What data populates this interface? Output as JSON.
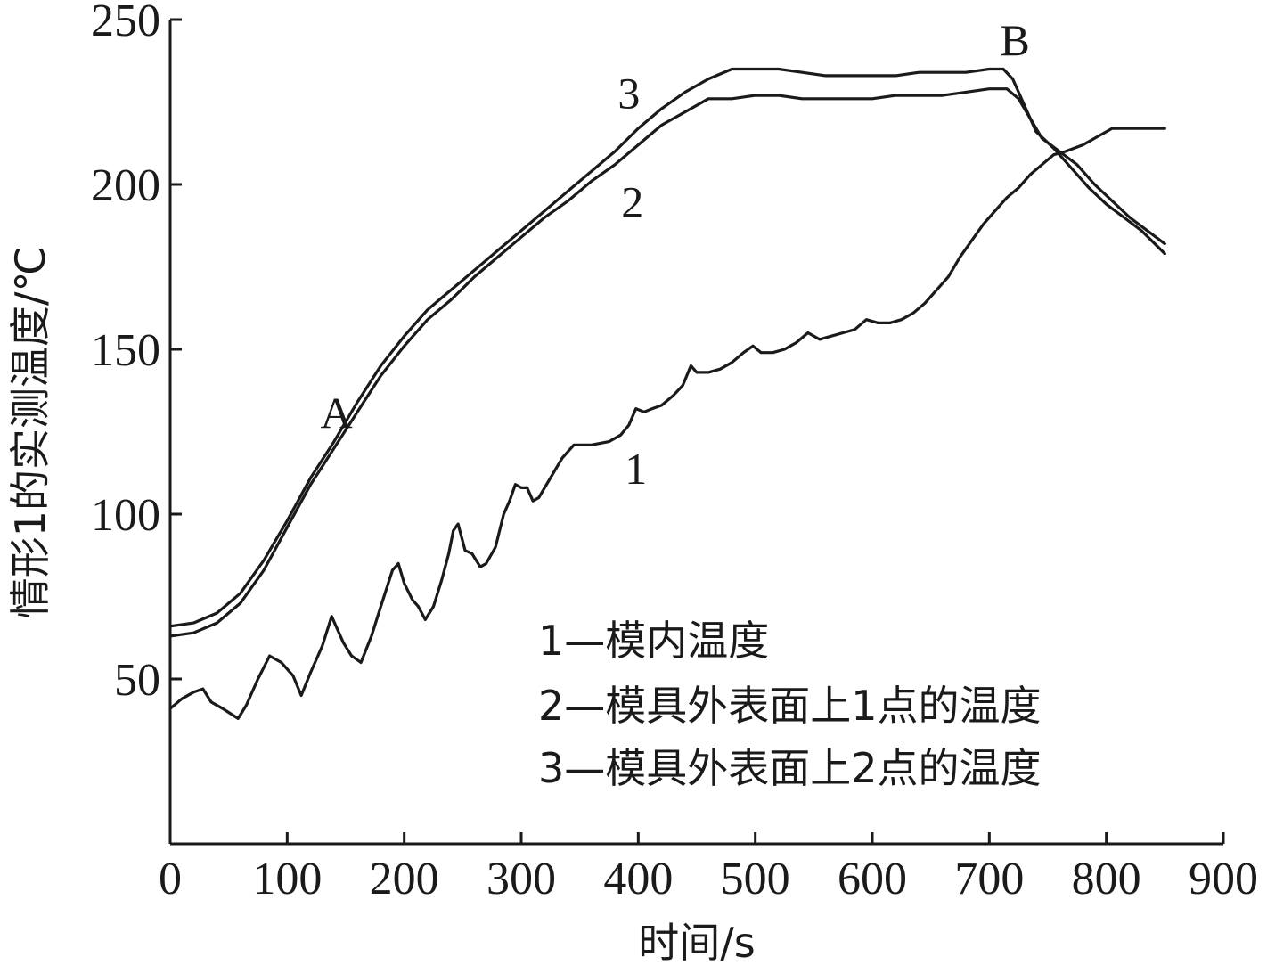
{
  "chart_data": {
    "type": "line",
    "xlabel": "时间/s",
    "ylabel": "情形1的实测温度/℃",
    "xlim": [
      0,
      900
    ],
    "ylim": [
      0,
      250
    ],
    "x_ticks": [
      "0",
      "100",
      "200",
      "300",
      "400",
      "500",
      "600",
      "700",
      "800",
      "900"
    ],
    "y_ticks": [
      "50",
      "100",
      "150",
      "200",
      "250"
    ],
    "grid": false,
    "legend_position": "bottom-right",
    "legend": [
      "1—模内温度",
      "2—模具外表面上1点的温度",
      "3—模具外表面上2点的温度"
    ],
    "series": [
      {
        "name": "1",
        "x": [
          0,
          10,
          20,
          28,
          35,
          45,
          58,
          65,
          75,
          85,
          95,
          105,
          112,
          120,
          130,
          138,
          148,
          155,
          163,
          172,
          180,
          190,
          195,
          200,
          207,
          212,
          218,
          225,
          232,
          238,
          242,
          246,
          252,
          258,
          265,
          270,
          278,
          285,
          290,
          295,
          300,
          305,
          310,
          315,
          325,
          335,
          345,
          360,
          375,
          385,
          392,
          398,
          405,
          412,
          420,
          430,
          438,
          445,
          450,
          460,
          470,
          480,
          490,
          498,
          505,
          515,
          525,
          535,
          545,
          555,
          565,
          575,
          585,
          595,
          605,
          615,
          625,
          635,
          645,
          655,
          665,
          675,
          685,
          695,
          705,
          715,
          725,
          735,
          745,
          755,
          765,
          780,
          795,
          805,
          815,
          830,
          850
        ],
        "y": [
          41,
          44,
          46,
          47,
          43,
          41,
          38,
          42,
          50,
          57,
          55,
          51,
          45,
          52,
          60,
          69,
          61,
          57,
          55,
          63,
          72,
          83,
          85,
          79,
          74,
          72,
          68,
          72,
          80,
          88,
          95,
          97,
          89,
          88,
          84,
          85,
          90,
          100,
          104,
          109,
          108,
          108,
          104,
          105,
          111,
          117,
          121,
          121,
          122,
          124,
          127,
          132,
          131,
          132,
          133,
          136,
          139,
          145,
          143,
          143,
          144,
          146,
          149,
          151,
          149,
          149,
          150,
          152,
          155,
          153,
          154,
          155,
          156,
          159,
          158,
          158,
          159,
          161,
          164,
          168,
          172,
          178,
          183,
          188,
          192,
          196,
          199,
          203,
          206,
          209,
          210,
          212,
          215,
          217,
          217,
          217,
          217
        ]
      },
      {
        "name": "2",
        "x": [
          0,
          20,
          40,
          60,
          80,
          100,
          120,
          140,
          160,
          180,
          200,
          220,
          240,
          260,
          280,
          300,
          320,
          340,
          360,
          380,
          400,
          420,
          440,
          460,
          480,
          500,
          520,
          540,
          560,
          580,
          600,
          620,
          640,
          660,
          680,
          700,
          715,
          725,
          735,
          745,
          760,
          775,
          790,
          805,
          820,
          835,
          850
        ],
        "y": [
          63,
          64,
          67,
          73,
          83,
          96,
          109,
          120,
          131,
          142,
          151,
          159,
          165,
          172,
          178,
          184,
          190,
          195,
          201,
          206,
          212,
          218,
          222,
          226,
          226,
          227,
          227,
          226,
          226,
          226,
          226,
          227,
          227,
          227,
          228,
          229,
          229,
          226,
          220,
          214,
          210,
          206,
          200,
          195,
          190,
          186,
          182
        ]
      },
      {
        "name": "3",
        "x": [
          0,
          20,
          40,
          60,
          80,
          100,
          120,
          140,
          160,
          180,
          200,
          220,
          240,
          260,
          280,
          300,
          320,
          340,
          360,
          380,
          400,
          420,
          440,
          460,
          480,
          500,
          520,
          540,
          560,
          580,
          600,
          620,
          640,
          660,
          680,
          700,
          712,
          720,
          730,
          740,
          755,
          770,
          785,
          800,
          815,
          830,
          850
        ],
        "y": [
          66,
          67,
          70,
          76,
          86,
          98,
          111,
          122,
          134,
          145,
          154,
          162,
          168,
          174,
          180,
          186,
          192,
          198,
          204,
          210,
          217,
          223,
          228,
          232,
          235,
          235,
          235,
          234,
          233,
          233,
          233,
          233,
          234,
          234,
          234,
          235,
          235,
          232,
          224,
          216,
          211,
          205,
          199,
          194,
          190,
          186,
          179
        ]
      }
    ],
    "annotations": [
      {
        "text": "A",
        "x": 142,
        "y": 131
      },
      {
        "text": "B",
        "x": 722,
        "y": 244
      },
      {
        "text": "1",
        "x": 398,
        "y": 114
      },
      {
        "text": "2",
        "x": 395,
        "y": 195
      },
      {
        "text": "3",
        "x": 392,
        "y": 228
      }
    ]
  }
}
